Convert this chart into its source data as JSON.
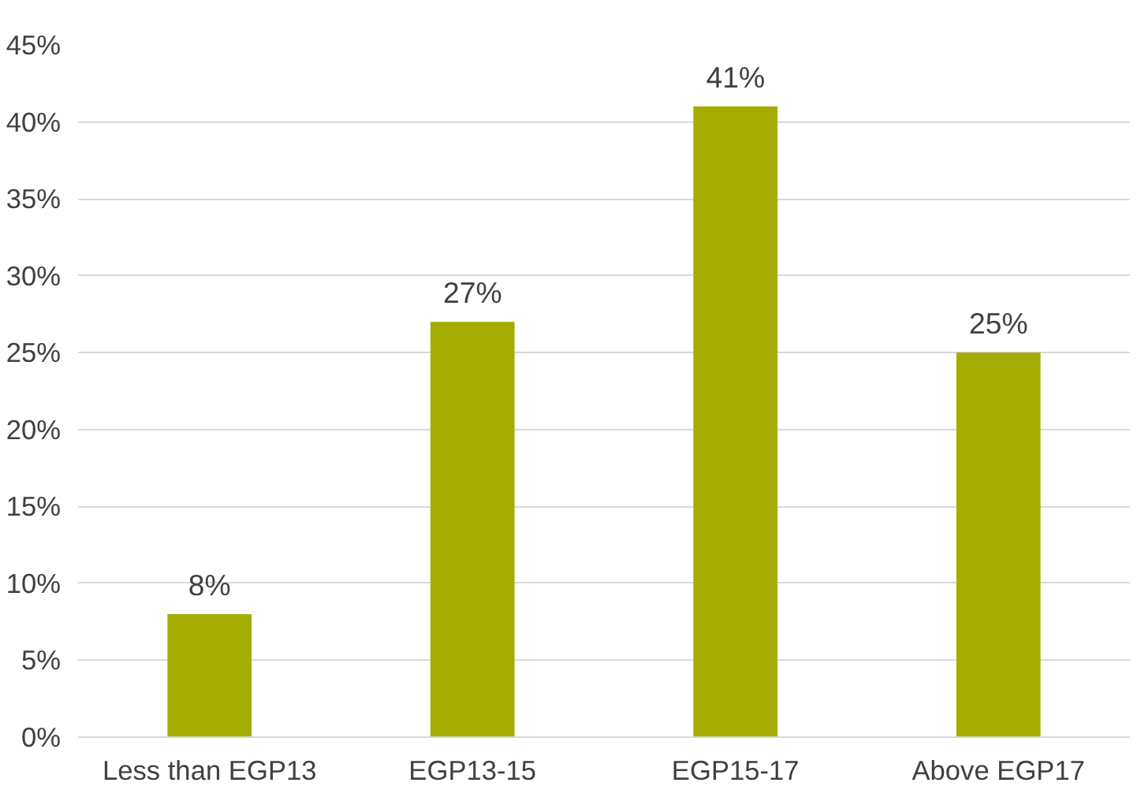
{
  "chart_data": {
    "type": "bar",
    "categories": [
      "Less than EGP13",
      "EGP13-15",
      "EGP15-17",
      "Above EGP17"
    ],
    "values": [
      8,
      27,
      41,
      25
    ],
    "value_labels": [
      "8%",
      "27%",
      "41%",
      "25%"
    ],
    "color": "#a3ad00",
    "ylim": [
      0,
      45
    ],
    "yticks": [
      {
        "value": 0,
        "label": "0%"
      },
      {
        "value": 5,
        "label": "5%"
      },
      {
        "value": 10,
        "label": "10%"
      },
      {
        "value": 15,
        "label": "15%"
      },
      {
        "value": 20,
        "label": "20%"
      },
      {
        "value": 25,
        "label": "25%"
      },
      {
        "value": 30,
        "label": "30%"
      },
      {
        "value": 35,
        "label": "35%"
      },
      {
        "value": 40,
        "label": "40%"
      },
      {
        "value": 45,
        "label": "45%"
      }
    ],
    "grid": "y"
  }
}
